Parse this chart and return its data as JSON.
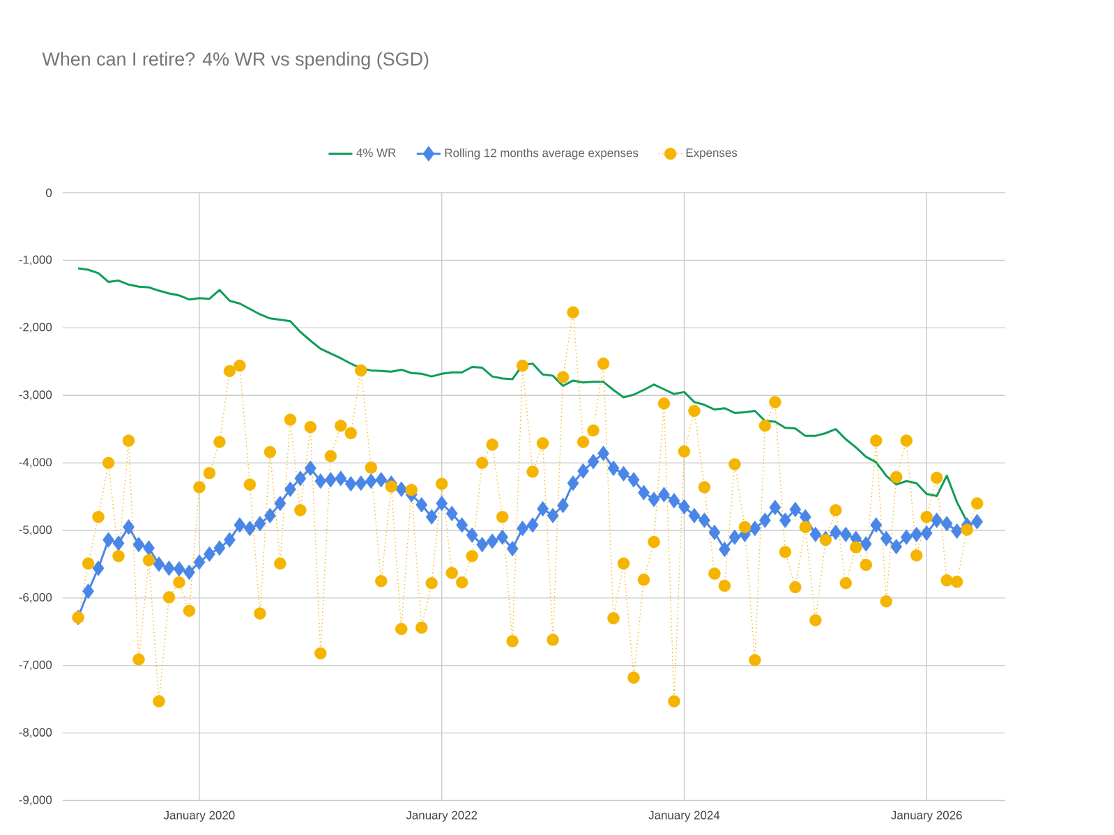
{
  "chart_data": {
    "type": "line",
    "title": "When can I retire? 4% WR vs spending (SGD)",
    "x": [
      "2019-01",
      "2019-02",
      "2019-03",
      "2019-04",
      "2019-05",
      "2019-06",
      "2019-07",
      "2019-08",
      "2019-09",
      "2019-10",
      "2019-11",
      "2019-12",
      "2020-01",
      "2020-02",
      "2020-03",
      "2020-04",
      "2020-05",
      "2020-06",
      "2020-07",
      "2020-08",
      "2020-09",
      "2020-10",
      "2020-11",
      "2020-12",
      "2021-01",
      "2021-02",
      "2021-03",
      "2021-04",
      "2021-05",
      "2021-06",
      "2021-07",
      "2021-08",
      "2021-09",
      "2021-10",
      "2021-11",
      "2021-12",
      "2022-01",
      "2022-02",
      "2022-03",
      "2022-04",
      "2022-05",
      "2022-06",
      "2022-07",
      "2022-08",
      "2022-09",
      "2022-10",
      "2022-11",
      "2022-12",
      "2023-01",
      "2023-02",
      "2023-03",
      "2023-04",
      "2023-05",
      "2023-06",
      "2023-07",
      "2023-08",
      "2023-09",
      "2023-10",
      "2023-11",
      "2023-12",
      "2024-01",
      "2024-02",
      "2024-03",
      "2024-04",
      "2024-05",
      "2024-06",
      "2024-07",
      "2024-08",
      "2024-09",
      "2024-10",
      "2024-11",
      "2024-12",
      "2025-01",
      "2025-02",
      "2025-03",
      "2025-04",
      "2025-05",
      "2025-06",
      "2025-07",
      "2025-08",
      "2025-09",
      "2025-10",
      "2025-11",
      "2025-12",
      "2026-01",
      "2026-02",
      "2026-03",
      "2026-04",
      "2026-05",
      "2026-06"
    ],
    "series": [
      {
        "name": "4% WR",
        "color": "#0f9d58",
        "marker": "none",
        "line_style": "solid",
        "values": [
          -1120,
          -1140,
          -1190,
          -1320,
          -1300,
          -1360,
          -1390,
          -1400,
          -1450,
          -1490,
          -1520,
          -1580,
          -1560,
          -1570,
          -1440,
          -1600,
          -1640,
          -1720,
          -1800,
          -1860,
          -1880,
          -1900,
          -2060,
          -2190,
          -2310,
          -2380,
          -2450,
          -2530,
          -2600,
          -2630,
          -2640,
          -2650,
          -2620,
          -2670,
          -2680,
          -2720,
          -2680,
          -2660,
          -2660,
          -2580,
          -2590,
          -2720,
          -2750,
          -2760,
          -2550,
          -2530,
          -2690,
          -2710,
          -2860,
          -2780,
          -2810,
          -2800,
          -2800,
          -2920,
          -3030,
          -2990,
          -2920,
          -2840,
          -2910,
          -2980,
          -2950,
          -3100,
          -3140,
          -3210,
          -3190,
          -3260,
          -3250,
          -3230,
          -3380,
          -3390,
          -3480,
          -3490,
          -3600,
          -3600,
          -3560,
          -3500,
          -3650,
          -3770,
          -3910,
          -3990,
          -4190,
          -4320,
          -4270,
          -4300,
          -4460,
          -4490,
          -4190,
          -4580,
          -4870,
          null
        ]
      },
      {
        "name": "Rolling 12 months average expenses",
        "color": "#4a86e8",
        "marker": "diamond",
        "line_style": "solid",
        "values": [
          -6290,
          -5900,
          -5560,
          -5140,
          -5190,
          -4950,
          -5210,
          -5260,
          -5500,
          -5560,
          -5570,
          -5620,
          -5470,
          -5350,
          -5260,
          -5140,
          -4920,
          -4970,
          -4900,
          -4780,
          -4600,
          -4390,
          -4230,
          -4080,
          -4270,
          -4250,
          -4230,
          -4310,
          -4300,
          -4270,
          -4250,
          -4300,
          -4390,
          -4470,
          -4620,
          -4800,
          -4600,
          -4750,
          -4920,
          -5070,
          -5210,
          -5160,
          -5100,
          -5270,
          -4970,
          -4920,
          -4680,
          -4780,
          -4630,
          -4300,
          -4120,
          -3980,
          -3860,
          -4080,
          -4160,
          -4250,
          -4440,
          -4540,
          -4470,
          -4560,
          -4650,
          -4780,
          -4850,
          -5030,
          -5280,
          -5100,
          -5060,
          -4970,
          -4850,
          -4660,
          -4850,
          -4690,
          -4800,
          -5060,
          -5120,
          -5030,
          -5060,
          -5120,
          -5200,
          -4920,
          -5120,
          -5240,
          -5100,
          -5060,
          -5040,
          -4850,
          -4900,
          -5010,
          -4920,
          -4870
        ]
      },
      {
        "name": "Expenses",
        "color": "#f4b400",
        "marker": "circle",
        "line_style": "dotted",
        "values": [
          -6290,
          -5490,
          -4800,
          -4000,
          -5380,
          -3670,
          -6910,
          -5440,
          -7530,
          -5990,
          -5770,
          -6190,
          -4360,
          -4150,
          -3690,
          -2640,
          -2560,
          -4320,
          -6230,
          -3840,
          -5490,
          -3360,
          -4700,
          -3470,
          -6820,
          -3900,
          -3450,
          -3560,
          -2630,
          -4070,
          -5750,
          -4350,
          -6460,
          -4400,
          -6440,
          -5780,
          -4310,
          -5630,
          -5770,
          -5380,
          -4000,
          -3730,
          -4800,
          -6640,
          -2560,
          -4130,
          -3710,
          -6620,
          -2730,
          -1770,
          -3690,
          -3520,
          -2530,
          -6300,
          -5490,
          -7180,
          -5730,
          -5170,
          -3120,
          -7530,
          -3830,
          -3230,
          -4360,
          -5640,
          -5820,
          -4020,
          -4950,
          -6920,
          -3450,
          -3100,
          -5320,
          -5840,
          -4950,
          -6330,
          -5140,
          -4700,
          -5780,
          -5250,
          -5510,
          -3670,
          -6050,
          -4210,
          -3670,
          -5370,
          -4800,
          -4220,
          -5740,
          -5760,
          -4990,
          -4600
        ]
      }
    ],
    "xlim": [
      "2018-11-15",
      "2026-08-25"
    ],
    "xticks": [
      {
        "value": "2020-01",
        "label": "January 2020"
      },
      {
        "value": "2022-01",
        "label": "January 2022"
      },
      {
        "value": "2024-01",
        "label": "January 2024"
      },
      {
        "value": "2026-01",
        "label": "January 2026"
      }
    ],
    "ylim": [
      -9000,
      0
    ],
    "yticks": [
      {
        "value": -9000,
        "label": "-9,000"
      },
      {
        "value": -8000,
        "label": "-8,000"
      },
      {
        "value": -7000,
        "label": "-7,000"
      },
      {
        "value": -6000,
        "label": "-6,000"
      },
      {
        "value": -5000,
        "label": "-5,000"
      },
      {
        "value": -4000,
        "label": "-4,000"
      },
      {
        "value": -3000,
        "label": "-3,000"
      },
      {
        "value": -2000,
        "label": "-2,000"
      },
      {
        "value": -1000,
        "label": "-1,000"
      },
      0
    ],
    "grid": true,
    "legend": "top"
  }
}
